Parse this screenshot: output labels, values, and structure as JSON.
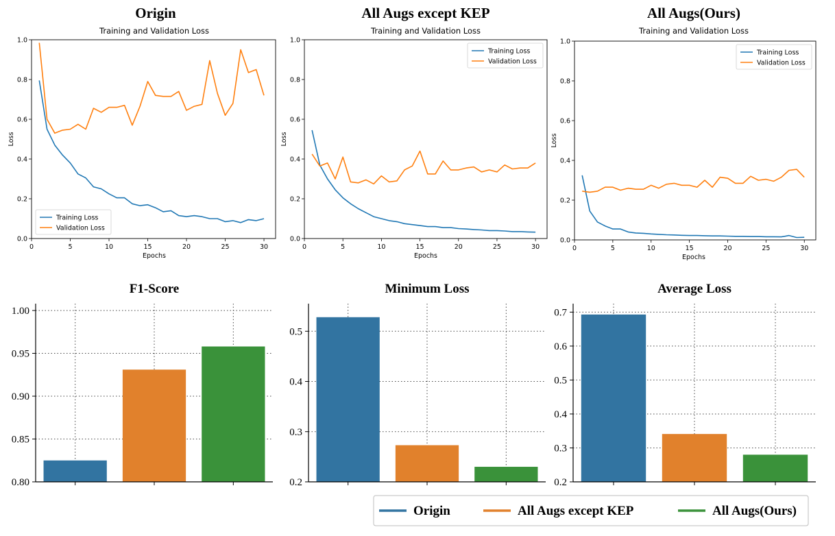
{
  "colors": {
    "training": "#1f77b4",
    "validation": "#ff7f0e",
    "bar_origin": "#3274a1",
    "bar_kep": "#e1812c",
    "bar_ours": "#3a923a"
  },
  "chart_data": [
    {
      "type": "line",
      "title": "Origin",
      "subtitle": "Training and Validation Loss",
      "xlabel": "Epochs",
      "ylabel": "Loss",
      "xlim": [
        0,
        31.5
      ],
      "ylim": [
        0,
        1.0
      ],
      "xticks": [
        "0",
        "5",
        "10",
        "15",
        "20",
        "25",
        "30"
      ],
      "yticks": [
        "0.0",
        "0.2",
        "0.4",
        "0.6",
        "0.8",
        "1.0"
      ],
      "legend_position": "lower-left",
      "series": [
        {
          "name": "Training Loss",
          "color": "#1f77b4",
          "values": [
            0.795,
            0.55,
            0.47,
            0.42,
            0.38,
            0.325,
            0.305,
            0.26,
            0.25,
            0.225,
            0.205,
            0.205,
            0.175,
            0.165,
            0.17,
            0.155,
            0.135,
            0.14,
            0.115,
            0.11,
            0.115,
            0.11,
            0.1,
            0.1,
            0.085,
            0.09,
            0.08,
            0.095,
            0.09,
            0.1
          ]
        },
        {
          "name": "Validation Loss",
          "color": "#ff7f0e",
          "values": [
            0.985,
            0.6,
            0.53,
            0.545,
            0.55,
            0.575,
            0.55,
            0.655,
            0.635,
            0.66,
            0.66,
            0.67,
            0.57,
            0.665,
            0.79,
            0.72,
            0.715,
            0.715,
            0.74,
            0.645,
            0.665,
            0.675,
            0.895,
            0.73,
            0.62,
            0.68,
            0.95,
            0.835,
            0.85,
            0.72
          ]
        }
      ]
    },
    {
      "type": "line",
      "title": "All Augs except KEP",
      "subtitle": "Training and Validation Loss",
      "xlabel": "Epochs",
      "ylabel": "Loss",
      "xlim": [
        0,
        31.5
      ],
      "ylim": [
        0,
        1.0
      ],
      "xticks": [
        "0",
        "5",
        "10",
        "15",
        "20",
        "25",
        "30"
      ],
      "yticks": [
        "0.0",
        "0.2",
        "0.4",
        "0.6",
        "0.8",
        "1.0"
      ],
      "legend_position": "top-right",
      "series": [
        {
          "name": "Training Loss",
          "color": "#1f77b4",
          "values": [
            0.545,
            0.37,
            0.3,
            0.245,
            0.205,
            0.175,
            0.15,
            0.13,
            0.11,
            0.1,
            0.09,
            0.085,
            0.075,
            0.07,
            0.065,
            0.06,
            0.06,
            0.055,
            0.055,
            0.05,
            0.048,
            0.045,
            0.043,
            0.04,
            0.04,
            0.038,
            0.035,
            0.035,
            0.033,
            0.032
          ]
        },
        {
          "name": "Validation Loss",
          "color": "#ff7f0e",
          "values": [
            0.425,
            0.365,
            0.38,
            0.3,
            0.41,
            0.285,
            0.28,
            0.295,
            0.275,
            0.315,
            0.285,
            0.29,
            0.345,
            0.365,
            0.44,
            0.325,
            0.325,
            0.39,
            0.345,
            0.345,
            0.355,
            0.36,
            0.335,
            0.345,
            0.335,
            0.37,
            0.35,
            0.355,
            0.355,
            0.38
          ]
        }
      ]
    },
    {
      "type": "line",
      "title": "All Augs(Ours)",
      "subtitle": "Training and Validation Loss",
      "xlabel": "Epochs",
      "ylabel": "Loss",
      "xlim": [
        0,
        31.5
      ],
      "ylim": [
        0,
        1.0
      ],
      "xticks": [
        "0",
        "5",
        "10",
        "15",
        "20",
        "25",
        "30"
      ],
      "yticks": [
        "0.0",
        "0.2",
        "0.4",
        "0.6",
        "0.8",
        "1.0"
      ],
      "legend_position": "top-right",
      "series": [
        {
          "name": "Training Loss",
          "color": "#1f77b4",
          "values": [
            0.325,
            0.145,
            0.09,
            0.07,
            0.055,
            0.055,
            0.04,
            0.035,
            0.033,
            0.03,
            0.028,
            0.026,
            0.025,
            0.023,
            0.022,
            0.022,
            0.021,
            0.02,
            0.02,
            0.019,
            0.018,
            0.018,
            0.017,
            0.017,
            0.016,
            0.016,
            0.015,
            0.022,
            0.012,
            0.013
          ]
        },
        {
          "name": "Validation Loss",
          "color": "#ff7f0e",
          "values": [
            0.245,
            0.24,
            0.245,
            0.265,
            0.265,
            0.25,
            0.26,
            0.255,
            0.255,
            0.275,
            0.26,
            0.28,
            0.285,
            0.275,
            0.275,
            0.265,
            0.3,
            0.265,
            0.315,
            0.31,
            0.285,
            0.285,
            0.32,
            0.3,
            0.305,
            0.295,
            0.315,
            0.35,
            0.355,
            0.315
          ]
        }
      ]
    },
    {
      "type": "bar",
      "title": "F1-Score",
      "categories": [
        "Origin",
        "All Augs except KEP",
        "All Augs(Ours)"
      ],
      "values": [
        0.825,
        0.931,
        0.958
      ],
      "ylim": [
        0.8,
        1.008
      ],
      "yticks": [
        "0.80",
        "0.85",
        "0.90",
        "0.95",
        "1.00"
      ],
      "grid": true
    },
    {
      "type": "bar",
      "title": "Minimum Loss",
      "categories": [
        "Origin",
        "All Augs except KEP",
        "All Augs(Ours)"
      ],
      "values": [
        0.528,
        0.273,
        0.23
      ],
      "ylim": [
        0.2,
        0.555
      ],
      "yticks": [
        "0.2",
        "0.3",
        "0.4",
        "0.5"
      ],
      "grid": true
    },
    {
      "type": "bar",
      "title": "Average Loss",
      "categories": [
        "Origin",
        "All Augs except KEP",
        "All Augs(Ours)"
      ],
      "values": [
        0.693,
        0.341,
        0.28
      ],
      "ylim": [
        0.2,
        0.725
      ],
      "yticks": [
        "0.2",
        "0.3",
        "0.4",
        "0.5",
        "0.6",
        "0.7"
      ],
      "grid": true
    }
  ],
  "bottom_legend": {
    "items": [
      {
        "label": "Origin",
        "color": "#3274a1"
      },
      {
        "label": "All Augs except KEP",
        "color": "#e1812c"
      },
      {
        "label": "All Augs(Ours)",
        "color": "#3a923a"
      }
    ]
  }
}
